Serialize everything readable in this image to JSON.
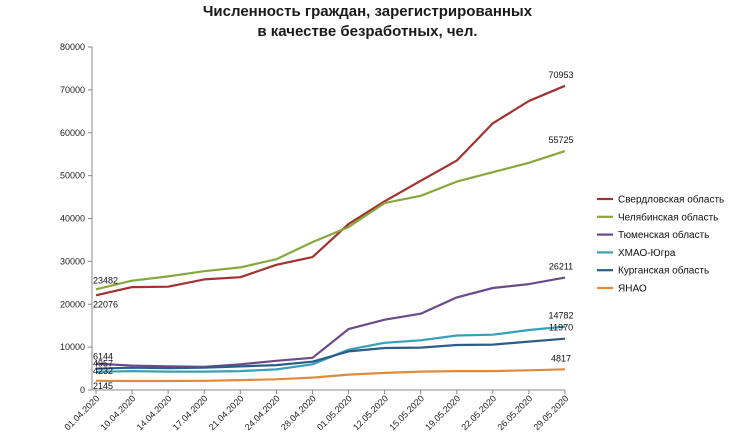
{
  "chart_data": {
    "type": "line",
    "title_line1": "Численность граждан, зарегистрированных",
    "title_line2": "в качестве безработных, чел.",
    "xlabel": "",
    "ylabel": "",
    "ylim": [
      0,
      80000
    ],
    "yticks": [
      0,
      10000,
      20000,
      30000,
      40000,
      50000,
      60000,
      70000,
      80000
    ],
    "grid": false,
    "legend_position": "right",
    "x": [
      "01.04.2020",
      "10.04.2020",
      "14.04.2020",
      "17.04.2020",
      "21.04.2020",
      "24.04.2020",
      "28.04.2020",
      "01.05.2020",
      "12.05.2020",
      "15.05.2020",
      "19.05.2020",
      "22.05.2020",
      "26.05.2020",
      "29.05.2020"
    ],
    "series": [
      {
        "name": "Свердловская область",
        "color": "#a0322f",
        "values": [
          22076,
          24000,
          24100,
          25800,
          26300,
          29200,
          31000,
          38700,
          44000,
          48800,
          53500,
          62200,
          67400,
          70953
        ],
        "labels": {
          "0": "22076",
          "13": "70953"
        }
      },
      {
        "name": "Челябинская область",
        "color": "#86a83e",
        "values": [
          23482,
          25500,
          26500,
          27700,
          28600,
          30500,
          34500,
          38000,
          43600,
          45300,
          48600,
          50800,
          53000,
          55725
        ],
        "labels": {
          "0": "23482",
          "13": "55725"
        }
      },
      {
        "name": "Тюменская область",
        "color": "#6c4a8a",
        "values": [
          6144,
          5700,
          5500,
          5400,
          6000,
          6800,
          7500,
          14200,
          16400,
          17800,
          21600,
          23800,
          24700,
          26211
        ],
        "labels": {
          "0": "6144",
          "13": "26211"
        }
      },
      {
        "name": "ХМАО-Югра",
        "color": "#36a0b8",
        "values": [
          4232,
          4400,
          4300,
          4300,
          4400,
          4800,
          6000,
          9400,
          11000,
          11600,
          12700,
          12900,
          14000,
          14782
        ],
        "labels": {
          "0": "4232",
          "13": "14782"
        }
      },
      {
        "name": "Курганская область",
        "color": "#2b5d86",
        "values": [
          4957,
          5200,
          5100,
          5200,
          5500,
          5800,
          6600,
          9000,
          9800,
          9900,
          10500,
          10600,
          11300,
          11970
        ],
        "labels": {
          "0": "4957",
          "13": "11970"
        }
      },
      {
        "name": "ЯНАО",
        "color": "#e08a3c",
        "values": [
          2145,
          2100,
          2100,
          2150,
          2300,
          2500,
          2900,
          3600,
          4000,
          4300,
          4400,
          4400,
          4600,
          4817
        ],
        "labels": {
          "0": "2145",
          "13": "4817"
        }
      }
    ]
  }
}
